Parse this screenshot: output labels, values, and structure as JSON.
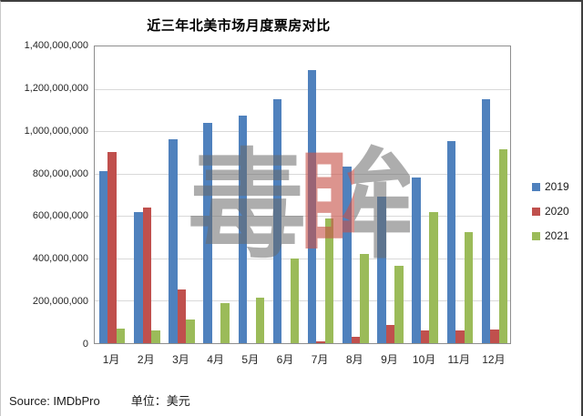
{
  "title": "近三年北美市场月度票房对比",
  "watermark": {
    "char1": "毒",
    "char2": "眸"
  },
  "footer": {
    "source": "Source: IMDbPro",
    "unit": "单位：美元"
  },
  "colors": {
    "y2019": "#4F81BD",
    "y2020": "#C0504D",
    "y2021": "#9BBB59",
    "gridline": "#d9d9d9",
    "plot_border": "#8e8e8e"
  },
  "chart_data": {
    "type": "bar",
    "title": "近三年北美市场月度票房对比",
    "categories": [
      "1月",
      "2月",
      "3月",
      "4月",
      "5月",
      "6月",
      "7月",
      "8月",
      "9月",
      "10月",
      "11月",
      "12月"
    ],
    "series": [
      {
        "name": "2019",
        "color": "#4F81BD",
        "values": [
          810000000,
          620000000,
          960000000,
          1040000000,
          1075000000,
          1150000000,
          1290000000,
          835000000,
          690000000,
          780000000,
          955000000,
          1150000000
        ]
      },
      {
        "name": "2020",
        "color": "#C0504D",
        "values": [
          900000000,
          640000000,
          255000000,
          0,
          0,
          0,
          10000000,
          30000000,
          85000000,
          60000000,
          60000000,
          65000000
        ]
      },
      {
        "name": "2021",
        "color": "#9BBB59",
        "values": [
          70000000,
          60000000,
          110000000,
          190000000,
          215000000,
          400000000,
          590000000,
          420000000,
          365000000,
          620000000,
          525000000,
          915000000
        ]
      }
    ],
    "xlabel": "",
    "ylabel": "",
    "ylim": [
      0,
      1400000000
    ],
    "ytick_step": 200000000,
    "ytick_labels": [
      "1,400,000,000",
      "1,200,000,000",
      "1,000,000,000",
      "800,000,000",
      "600,000,000",
      "400,000,000",
      "200,000,000",
      "0"
    ],
    "grid": true,
    "legend_position": "right",
    "unit": "美元",
    "source": "IMDbPro"
  }
}
